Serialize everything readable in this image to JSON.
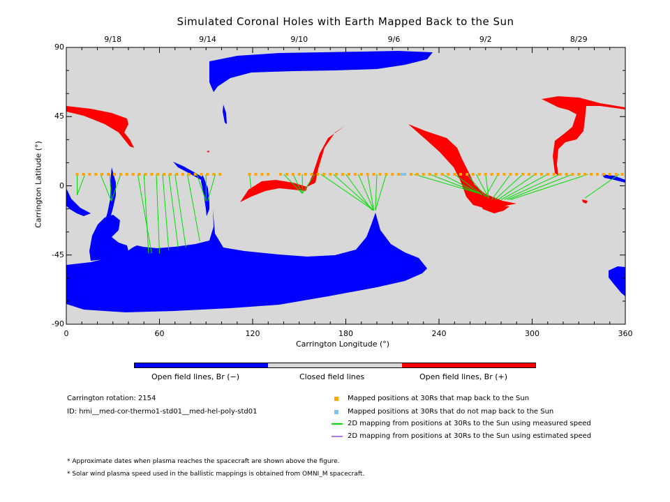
{
  "title": "Simulated Coronal Holes with Earth Mapped Back to the Sun",
  "chart_data": {
    "type": "scatter",
    "title": "Simulated Coronal Holes with Earth Mapped Back to the Sun",
    "xlabel": "Carrington Longitude (°)",
    "ylabel": "Carrington Latitude (°)",
    "xlim": [
      0,
      360
    ],
    "ylim": [
      -90,
      90
    ],
    "xticks": [
      "0",
      "60",
      "120",
      "180",
      "240",
      "300",
      "360"
    ],
    "xtick_values": [
      0,
      60,
      120,
      180,
      240,
      300,
      360
    ],
    "yticks": [
      "90",
      "45",
      "0",
      "-45",
      "-90"
    ],
    "ytick_values": [
      90,
      45,
      0,
      -45,
      -90
    ],
    "top_date_labels": [
      {
        "text": "9/18",
        "lon": 30
      },
      {
        "text": "9/14",
        "lon": 91
      },
      {
        "text": "9/10",
        "lon": 150
      },
      {
        "text": "9/6",
        "lon": 211
      },
      {
        "text": "9/2",
        "lon": 270
      },
      {
        "text": "8/29",
        "lon": 330
      }
    ],
    "colors": {
      "open_negative": "#0000ff",
      "closed": "#d8d8d8",
      "open_positive": "#ff0000",
      "mapped": "#ffa500",
      "not_mapped": "#7ec0ee",
      "measured": "#00dd00",
      "estimated": "#b07ce0"
    },
    "mapped_points_lat": 7.5,
    "mapped_points_lon": [
      7,
      11,
      15,
      19,
      23,
      27,
      31,
      35,
      39,
      43,
      47,
      51,
      55,
      59,
      63,
      67,
      71,
      75,
      79,
      83,
      87,
      91,
      95,
      99,
      118,
      122,
      126,
      130,
      138,
      142,
      146,
      150,
      154,
      158,
      162,
      166,
      170,
      174,
      178,
      182,
      186,
      190,
      194,
      198,
      202,
      206,
      210,
      214,
      222,
      226,
      230,
      234,
      238,
      242,
      246,
      250,
      254,
      258,
      262,
      266,
      270,
      274,
      278,
      282,
      286,
      290,
      294,
      298,
      302,
      306,
      310,
      314,
      318,
      322,
      326,
      330,
      334,
      338,
      342,
      346,
      350,
      354,
      358
    ],
    "not_mapped_points_lon": [
      216,
      218
    ],
    "field_lines": [
      {
        "from": [
          7,
          7.5
        ],
        "to": [
          7,
          -6
        ]
      },
      {
        "from": [
          12,
          7.5
        ],
        "to": [
          7,
          -6
        ]
      },
      {
        "from": [
          22,
          7.5
        ],
        "to": [
          29,
          -10
        ]
      },
      {
        "from": [
          28,
          7.5
        ],
        "to": [
          29,
          -10
        ]
      },
      {
        "from": [
          35,
          7.5
        ],
        "to": [
          29,
          -10
        ]
      },
      {
        "from": [
          46,
          7.5
        ],
        "to": [
          55,
          -44
        ]
      },
      {
        "from": [
          50,
          7.5
        ],
        "to": [
          53,
          -44
        ]
      },
      {
        "from": [
          58,
          7.5
        ],
        "to": [
          60,
          -44
        ]
      },
      {
        "from": [
          62,
          7.5
        ],
        "to": [
          66,
          -42
        ]
      },
      {
        "from": [
          66,
          7.5
        ],
        "to": [
          72,
          -40
        ]
      },
      {
        "from": [
          70,
          7.5
        ],
        "to": [
          77,
          -40
        ]
      },
      {
        "from": [
          78,
          7.5
        ],
        "to": [
          86,
          -36
        ]
      },
      {
        "from": [
          84,
          7.5
        ],
        "to": [
          90,
          -10
        ]
      },
      {
        "from": [
          90,
          7.5
        ],
        "to": [
          90,
          -10
        ]
      },
      {
        "from": [
          96,
          7.5
        ],
        "to": [
          91,
          -10
        ]
      },
      {
        "from": [
          118,
          7.5
        ],
        "to": [
          119,
          -2
        ]
      },
      {
        "from": [
          140,
          7.5
        ],
        "to": [
          152,
          -5
        ]
      },
      {
        "from": [
          146,
          7.5
        ],
        "to": [
          152,
          -5
        ]
      },
      {
        "from": [
          152,
          7.5
        ],
        "to": [
          152,
          -5
        ]
      },
      {
        "from": [
          160,
          7.5
        ],
        "to": [
          152,
          -5
        ]
      },
      {
        "from": [
          164,
          7.5
        ],
        "to": [
          198,
          -16
        ]
      },
      {
        "from": [
          172,
          7.5
        ],
        "to": [
          198,
          -16
        ]
      },
      {
        "from": [
          180,
          7.5
        ],
        "to": [
          197,
          -16
        ]
      },
      {
        "from": [
          188,
          7.5
        ],
        "to": [
          198,
          -16
        ]
      },
      {
        "from": [
          194,
          7.5
        ],
        "to": [
          198,
          -16
        ]
      },
      {
        "from": [
          200,
          7.5
        ],
        "to": [
          199,
          -16
        ]
      },
      {
        "from": [
          206,
          7.5
        ],
        "to": [
          199,
          -16
        ]
      },
      {
        "from": [
          224,
          7.5
        ],
        "to": [
          266,
          -5
        ]
      },
      {
        "from": [
          234,
          7.5
        ],
        "to": [
          266,
          -5
        ]
      },
      {
        "from": [
          242,
          7.5
        ],
        "to": [
          268,
          -6
        ]
      },
      {
        "from": [
          250,
          7.5
        ],
        "to": [
          268,
          -6
        ]
      },
      {
        "from": [
          258,
          7.5
        ],
        "to": [
          270,
          -7
        ]
      },
      {
        "from": [
          264,
          7.5
        ],
        "to": [
          272,
          -8
        ]
      },
      {
        "from": [
          270,
          7.5
        ],
        "to": [
          272,
          -8
        ]
      },
      {
        "from": [
          278,
          7.5
        ],
        "to": [
          270,
          -7
        ]
      },
      {
        "from": [
          286,
          7.5
        ],
        "to": [
          274,
          -9
        ]
      },
      {
        "from": [
          294,
          7.5
        ],
        "to": [
          276,
          -9
        ]
      },
      {
        "from": [
          302,
          7.5
        ],
        "to": [
          278,
          -9
        ]
      },
      {
        "from": [
          310,
          7.5
        ],
        "to": [
          280,
          -9
        ]
      },
      {
        "from": [
          318,
          7.5
        ],
        "to": [
          282,
          -9
        ]
      },
      {
        "from": [
          326,
          7.5
        ],
        "to": [
          284,
          -9
        ]
      },
      {
        "from": [
          336,
          7.5
        ],
        "to": [
          286,
          -9
        ]
      },
      {
        "from": [
          356,
          7.5
        ],
        "to": [
          334,
          -8
        ]
      }
    ]
  },
  "colorbar": {
    "neg_label": "Open field lines, Br (−)",
    "closed_label": "Closed field lines",
    "pos_label": "Open field lines, Br (+)"
  },
  "info": {
    "rotation": "Carrington rotation: 2154",
    "id": "ID: hmi__med-cor-thermo1-std01__med-hel-poly-std01"
  },
  "legend": {
    "mapped": "Mapped positions at 30Rs that map back to the Sun",
    "not_mapped": "Mapped positions at 30Rs that do not map back to the Sun",
    "measured": "2D mapping from positions at 30Rs to the Sun using measured speed",
    "estimated": "2D mapping from positions at 30Rs to the Sun using estimated speed"
  },
  "footnotes": {
    "note1": "* Approximate dates when plasma reaches the spacecraft are shown above the figure.",
    "note2": "* Solar wind plasma speed used in the ballistic mappings is obtained from OMNI_M spacecraft."
  }
}
